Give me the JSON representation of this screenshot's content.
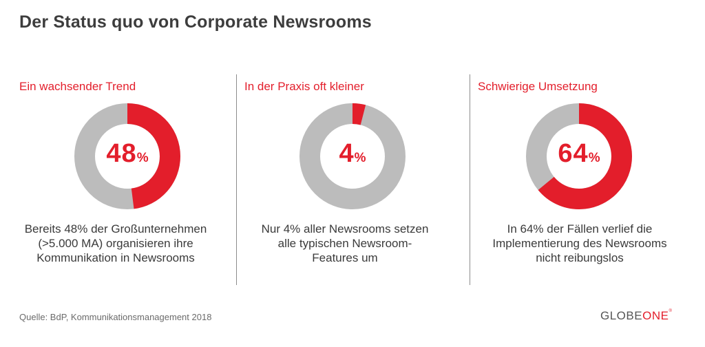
{
  "title": "Der Status quo von Corporate Newsrooms",
  "colors": {
    "accent": "#e31e2b",
    "remainder": "#bcbcbc"
  },
  "chart_data": [
    {
      "type": "pie",
      "title": "Ein wachsender Trend",
      "value": 48,
      "unit": "%",
      "slices": [
        {
          "label": "48%",
          "value": 48
        },
        {
          "label": "",
          "value": 52
        }
      ],
      "caption": [
        "Bereits 48% der Großunternehmen",
        "(>5.000 MA) organisieren ihre",
        "Kommunikation in Newsrooms"
      ]
    },
    {
      "type": "pie",
      "title": "In der Praxis oft kleiner",
      "value": 4,
      "unit": "%",
      "slices": [
        {
          "label": "4%",
          "value": 4
        },
        {
          "label": "",
          "value": 96
        }
      ],
      "caption": [
        "Nur 4% aller Newsrooms setzen",
        "alle typischen Newsroom-",
        "Features um"
      ]
    },
    {
      "type": "pie",
      "title": "Schwierige Umsetzung",
      "value": 64,
      "unit": "%",
      "slices": [
        {
          "label": "64%",
          "value": 64
        },
        {
          "label": "",
          "value": 36
        }
      ],
      "caption": [
        "In 64% der Fällen verlief die",
        "Implementierung des Newsrooms",
        "nicht reibungslos"
      ]
    }
  ],
  "source": "Quelle: BdP, Kommunikationsmanagement 2018",
  "logo": {
    "part1": "GLOBE",
    "part2": "ONE",
    "mark": "®"
  }
}
